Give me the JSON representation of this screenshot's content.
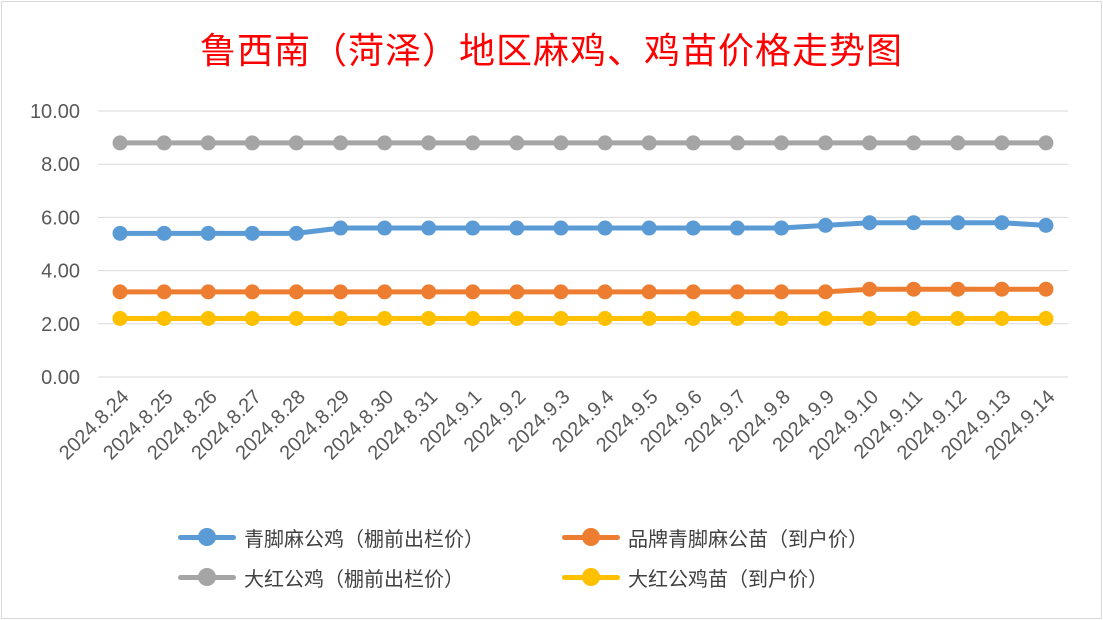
{
  "chart_data": {
    "type": "line",
    "title": "鲁西南（菏泽）地区麻鸡、鸡苗价格走势图",
    "xlabel": "",
    "ylabel": "",
    "ylim": [
      0,
      10
    ],
    "yticks": [
      "0.00",
      "2.00",
      "4.00",
      "6.00",
      "8.00",
      "10.00"
    ],
    "grid": true,
    "legend_position": "bottom",
    "x": [
      "2024.8.24",
      "2024.8.25",
      "2024.8.26",
      "2024.8.27",
      "2024.8.28",
      "2024.8.29",
      "2024.8.30",
      "2024.8.31",
      "2024.9.1",
      "2024.9.2",
      "2024.9.3",
      "2024.9.4",
      "2024.9.5",
      "2024.9.6",
      "2024.9.7",
      "2024.9.8",
      "2024.9.9",
      "2024.9.10",
      "2024.9.11",
      "2024.9.12",
      "2024.9.13",
      "2024.9.14"
    ],
    "series": [
      {
        "name": "青脚麻公鸡（棚前出栏价）",
        "color": "#5b9bd5",
        "values": [
          5.4,
          5.4,
          5.4,
          5.4,
          5.4,
          5.6,
          5.6,
          5.6,
          5.6,
          5.6,
          5.6,
          5.6,
          5.6,
          5.6,
          5.6,
          5.6,
          5.7,
          5.8,
          5.8,
          5.8,
          5.8,
          5.7
        ]
      },
      {
        "name": "品牌青脚麻公苗（到户价）",
        "color": "#ed7d31",
        "values": [
          3.2,
          3.2,
          3.2,
          3.2,
          3.2,
          3.2,
          3.2,
          3.2,
          3.2,
          3.2,
          3.2,
          3.2,
          3.2,
          3.2,
          3.2,
          3.2,
          3.2,
          3.3,
          3.3,
          3.3,
          3.3,
          3.3
        ]
      },
      {
        "name": "大红公鸡（棚前出栏价）",
        "color": "#a5a5a5",
        "values": [
          8.8,
          8.8,
          8.8,
          8.8,
          8.8,
          8.8,
          8.8,
          8.8,
          8.8,
          8.8,
          8.8,
          8.8,
          8.8,
          8.8,
          8.8,
          8.8,
          8.8,
          8.8,
          8.8,
          8.8,
          8.8,
          8.8
        ]
      },
      {
        "name": "大红公鸡苗（到户价）",
        "color": "#ffc000",
        "values": [
          2.2,
          2.2,
          2.2,
          2.2,
          2.2,
          2.2,
          2.2,
          2.2,
          2.2,
          2.2,
          2.2,
          2.2,
          2.2,
          2.2,
          2.2,
          2.2,
          2.2,
          2.2,
          2.2,
          2.2,
          2.2,
          2.2
        ]
      }
    ]
  }
}
